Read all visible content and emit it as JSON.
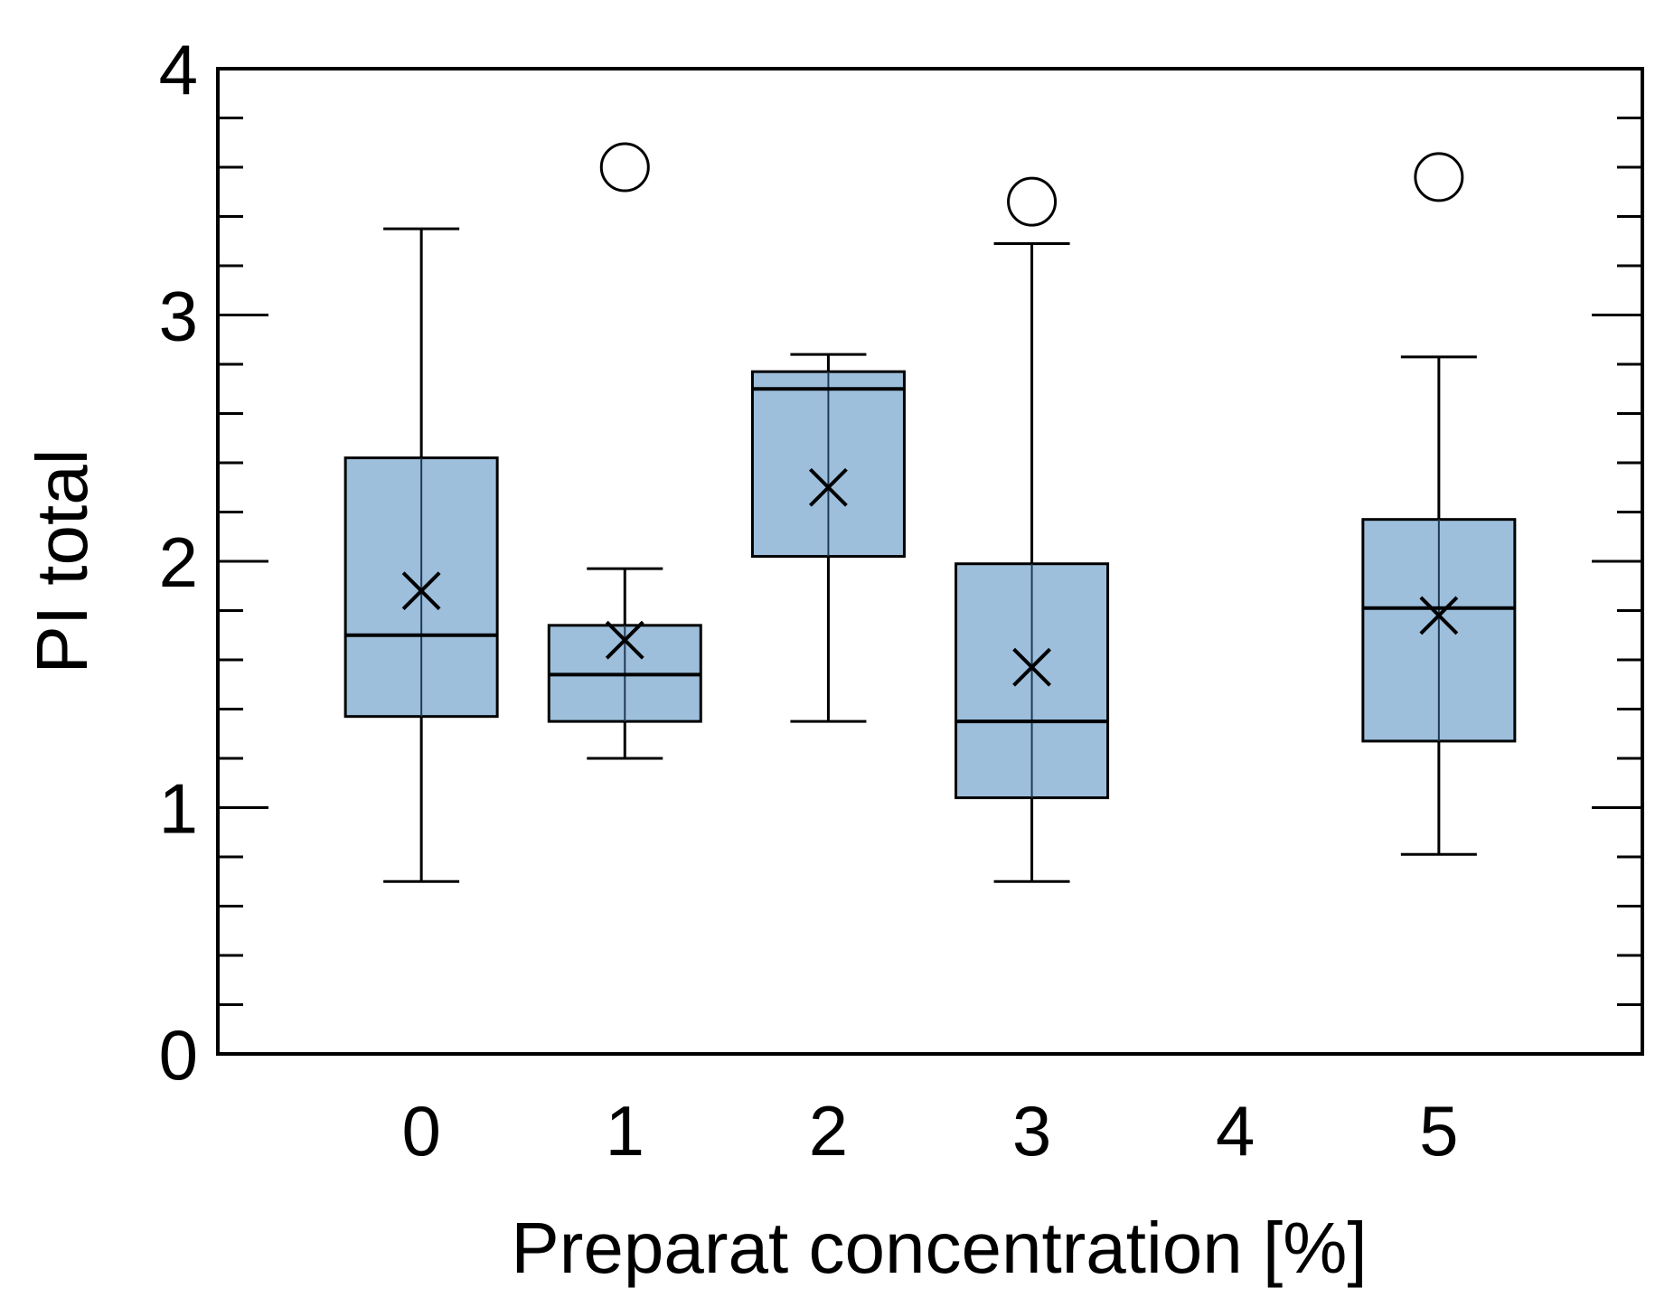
{
  "chart_data": {
    "type": "box",
    "title": "",
    "xlabel": "Preparat concentration [%]",
    "ylabel": "PI total",
    "ylim": [
      0,
      4
    ],
    "yticks": [
      0,
      1,
      2,
      3,
      4
    ],
    "y_minor_step": 0.2,
    "xticks": [
      0,
      1,
      2,
      3,
      4,
      5
    ],
    "xlim": [
      -1,
      6
    ],
    "grid": false,
    "legend": "none",
    "colors": {
      "box_fill": "#9dbfdc",
      "stroke": "#000000"
    },
    "series": [
      {
        "x": 0,
        "whisker_low": 0.7,
        "q1": 1.37,
        "median": 1.7,
        "q3": 2.42,
        "whisker_high": 3.35,
        "mean": 1.88,
        "outliers": []
      },
      {
        "x": 1,
        "whisker_low": 1.2,
        "q1": 1.35,
        "median": 1.54,
        "q3": 1.74,
        "whisker_high": 1.97,
        "mean": 1.68,
        "outliers": [
          3.6
        ]
      },
      {
        "x": 2,
        "whisker_low": 1.35,
        "q1": 2.02,
        "median": 2.7,
        "q3": 2.77,
        "whisker_high": 2.84,
        "mean": 2.3,
        "outliers": []
      },
      {
        "x": 3,
        "whisker_low": 0.7,
        "q1": 1.04,
        "median": 1.35,
        "q3": 1.99,
        "whisker_high": 3.29,
        "mean": 1.57,
        "outliers": [
          3.46
        ]
      },
      {
        "x": 5,
        "whisker_low": 0.81,
        "q1": 1.27,
        "median": 1.81,
        "q3": 2.17,
        "whisker_high": 2.83,
        "mean": 1.78,
        "outliers": [
          3.56
        ]
      }
    ]
  }
}
